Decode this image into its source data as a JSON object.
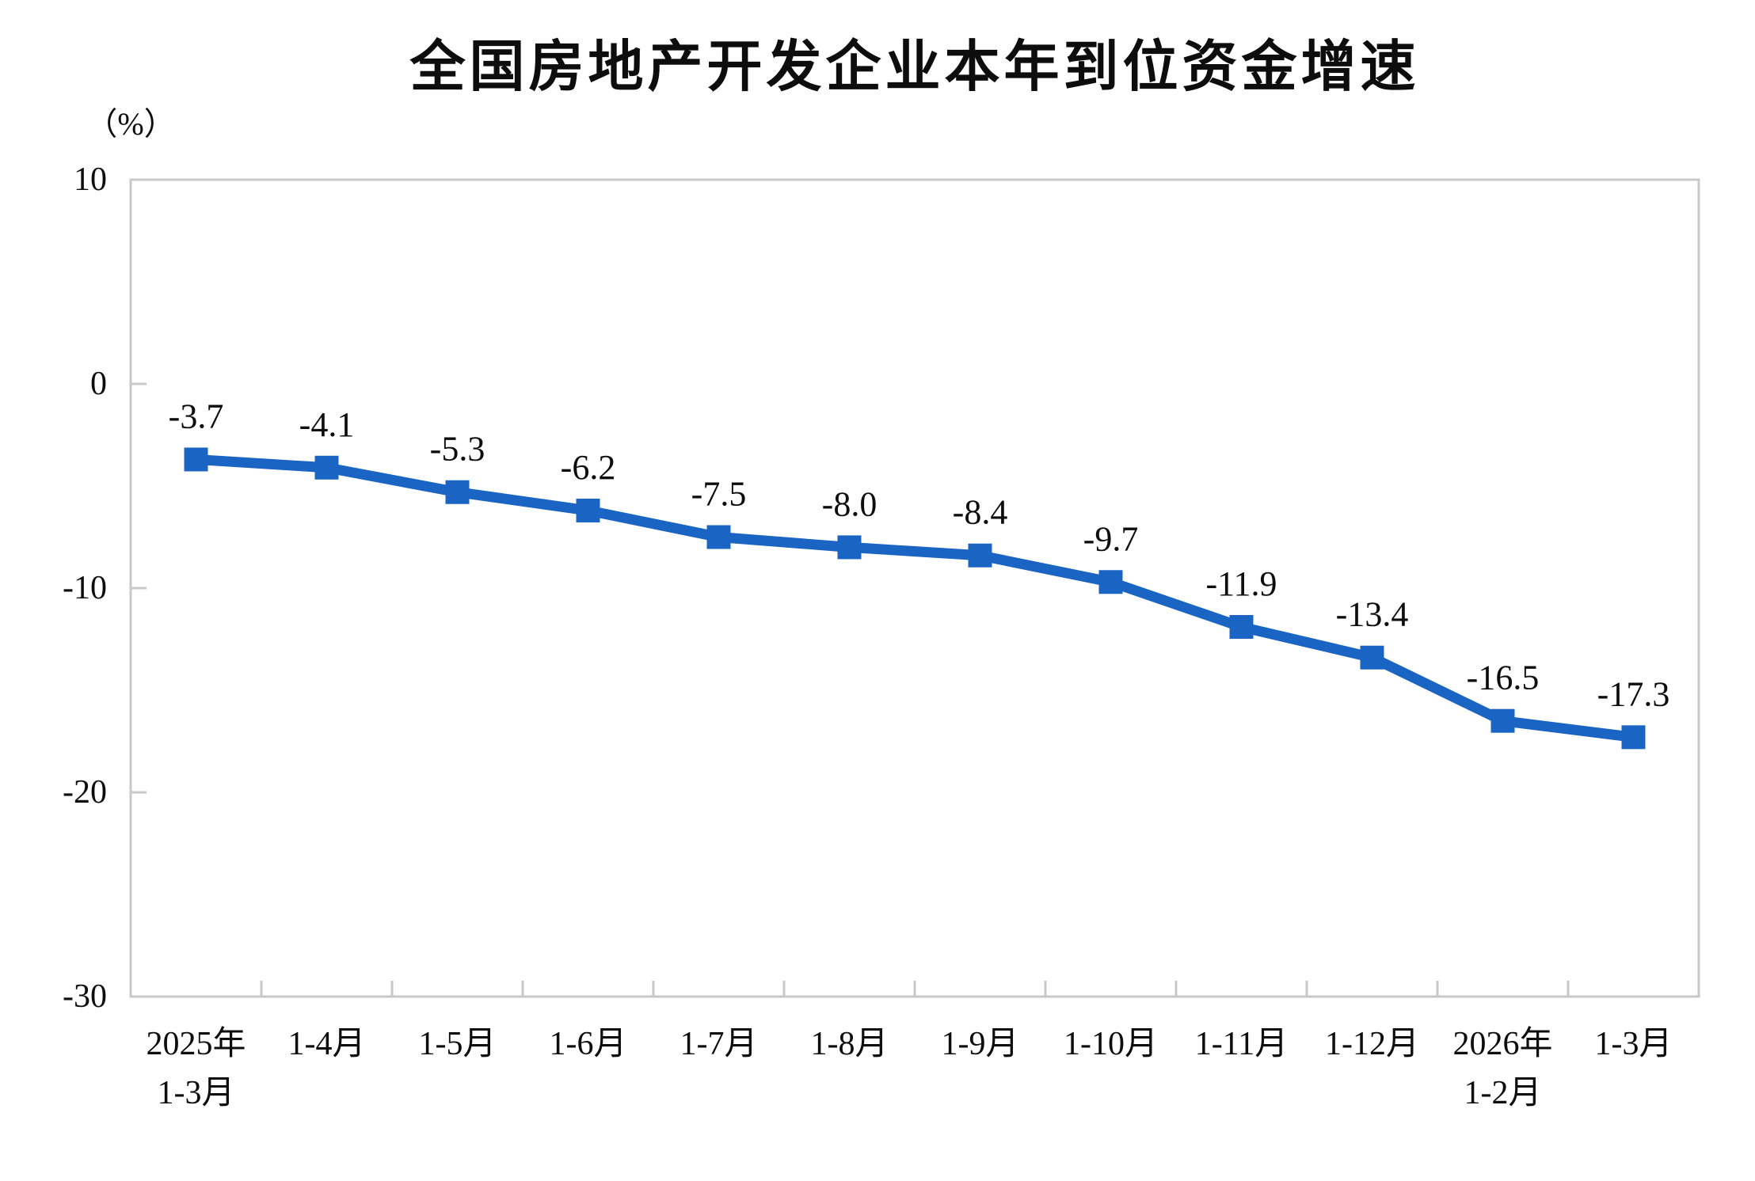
{
  "chart_data": {
    "type": "line",
    "title": "全国房地产开发企业本年到位资金增速",
    "unit_label": "（%）",
    "categories": [
      [
        "2025年",
        "1-3月"
      ],
      [
        "1-4月"
      ],
      [
        "1-5月"
      ],
      [
        "1-6月"
      ],
      [
        "1-7月"
      ],
      [
        "1-8月"
      ],
      [
        "1-9月"
      ],
      [
        "1-10月"
      ],
      [
        "1-11月"
      ],
      [
        "1-12月"
      ],
      [
        "2026年",
        "1-2月"
      ],
      [
        "1-3月"
      ]
    ],
    "values": [
      -3.7,
      -4.1,
      -5.3,
      -6.2,
      -7.5,
      -8.0,
      -8.4,
      -9.7,
      -11.9,
      -13.4,
      -16.5,
      -17.3
    ],
    "value_labels": [
      "-3.7",
      "-4.1",
      "-5.3",
      "-6.2",
      "-7.5",
      "-8.0",
      "-8.4",
      "-9.7",
      "-11.9",
      "-13.4",
      "-16.5",
      "-17.3"
    ],
    "ylim": [
      -30,
      10
    ],
    "y_ticks": [
      10,
      0,
      -10,
      -20,
      -30
    ],
    "y_tick_labels": [
      "10",
      "0",
      "-10",
      "-20",
      "-30"
    ],
    "grid": false,
    "legend": false,
    "series_name": "本年到位资金增速",
    "colors": {
      "line": "#1a64c4",
      "marker": "#1a64c4",
      "axis": "#c8c8c8",
      "text": "#0d0d0d"
    }
  }
}
